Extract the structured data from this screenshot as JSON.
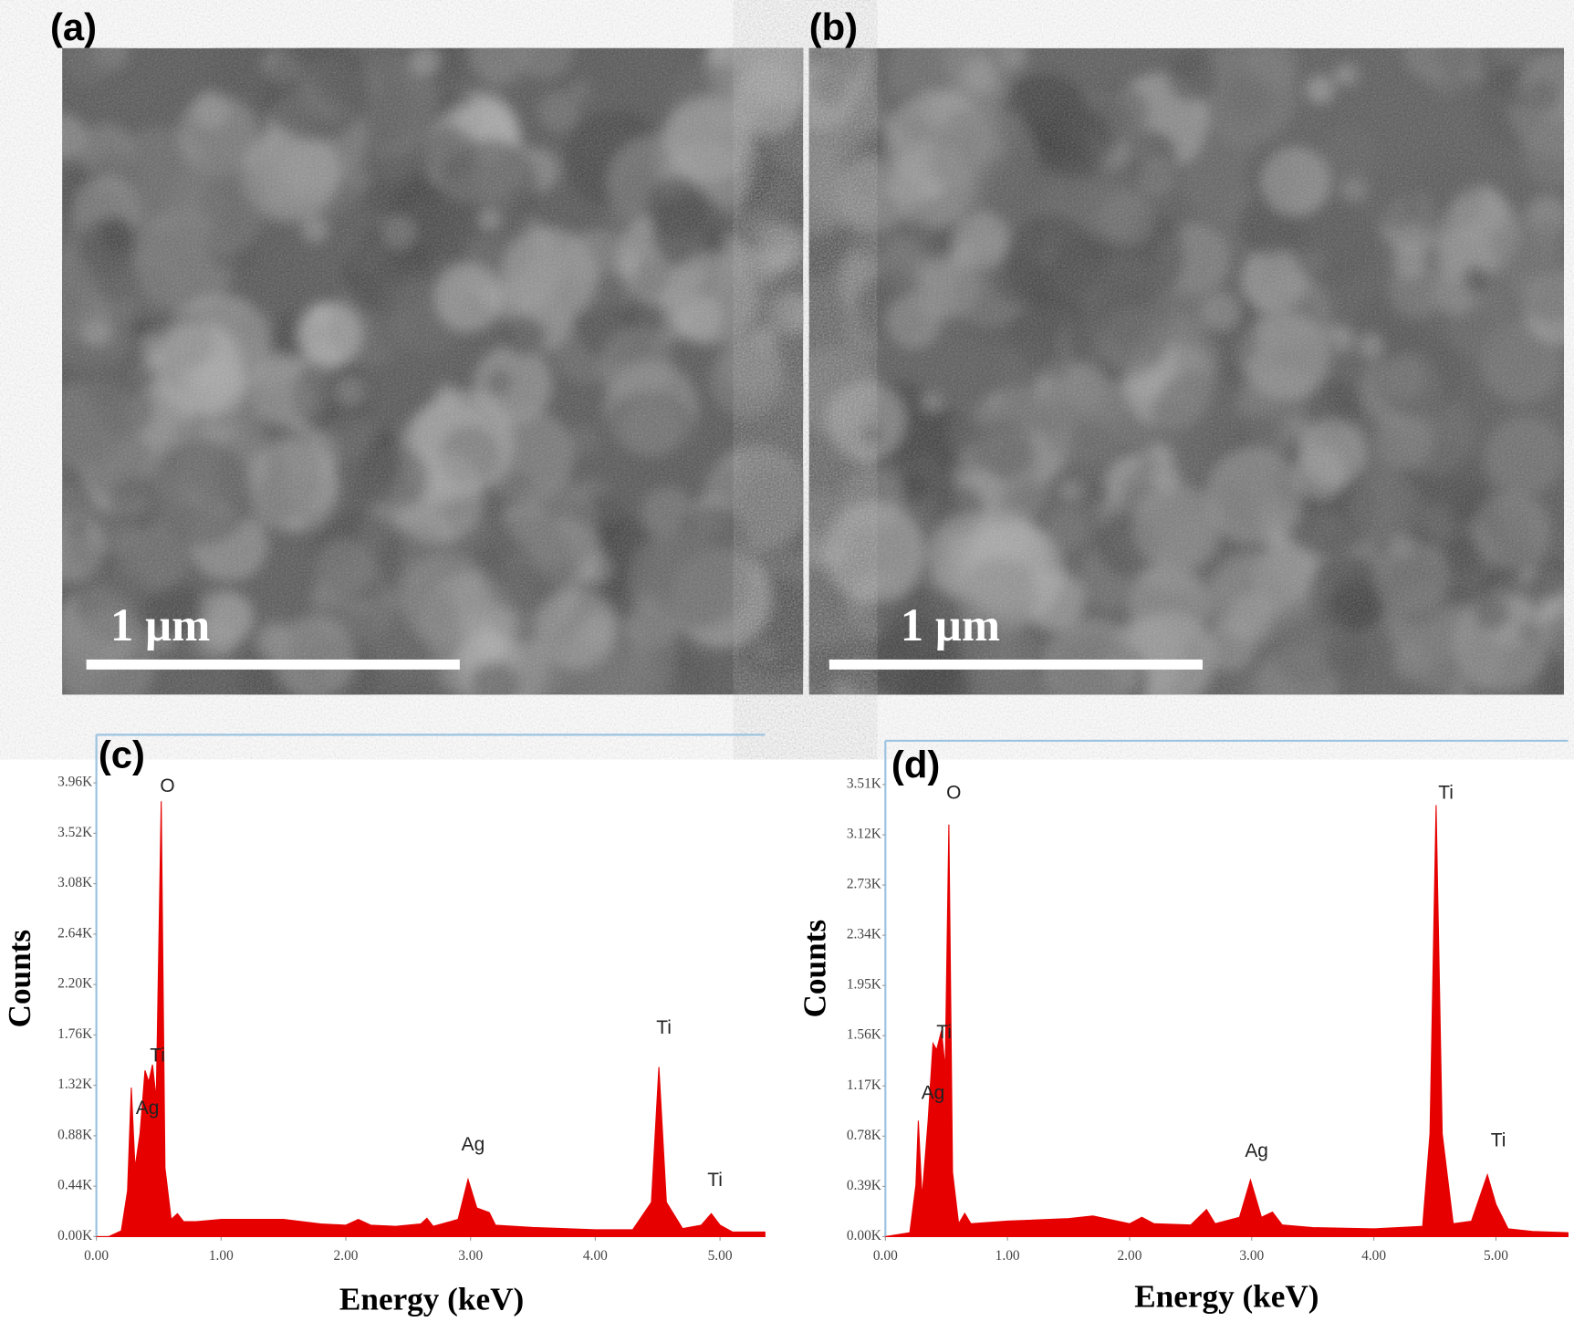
{
  "images": [
    {
      "label": "(a)",
      "scale_bar": "1 µm"
    },
    {
      "label": "(b)",
      "scale_bar": "1 µm"
    }
  ],
  "chart_data": [
    {
      "type": "area",
      "panel_label": "(c)",
      "x_label": "Energy (keV)",
      "y_label": "Counts",
      "color": "#e60000",
      "x": [
        0,
        0.1,
        0.2,
        0.25,
        0.28,
        0.31,
        0.35,
        0.39,
        0.42,
        0.45,
        0.48,
        0.52,
        0.55,
        0.6,
        0.65,
        0.7,
        0.8,
        1.0,
        1.5,
        1.8,
        2.0,
        2.1,
        2.2,
        2.4,
        2.6,
        2.65,
        2.7,
        2.9,
        2.98,
        3.05,
        3.15,
        3.2,
        3.5,
        4.0,
        4.3,
        4.45,
        4.51,
        4.57,
        4.7,
        4.85,
        4.93,
        5.0,
        5.1,
        5.36
      ],
      "values": [
        0,
        0,
        50,
        400,
        1300,
        600,
        900,
        1450,
        1350,
        1500,
        1200,
        3800,
        600,
        150,
        200,
        130,
        130,
        150,
        150,
        110,
        100,
        150,
        100,
        90,
        110,
        160,
        90,
        150,
        500,
        250,
        210,
        100,
        80,
        60,
        60,
        300,
        1480,
        300,
        70,
        100,
        200,
        100,
        40,
        40
      ],
      "xlim": [
        0,
        5.36
      ],
      "ylim": [
        0,
        4380
      ],
      "xticks": [
        {
          "value": 0,
          "label": "0.00"
        },
        {
          "value": 1,
          "label": "1.00"
        },
        {
          "value": 2,
          "label": "2.00"
        },
        {
          "value": 3,
          "label": "3.00"
        },
        {
          "value": 4,
          "label": "4.00"
        },
        {
          "value": 5,
          "label": "5.00"
        }
      ],
      "yticks": [
        {
          "value": 0,
          "label": "0.00K"
        },
        {
          "value": 440,
          "label": "0.44K"
        },
        {
          "value": 880,
          "label": "0.88K"
        },
        {
          "value": 1320,
          "label": "1.32K"
        },
        {
          "value": 1760,
          "label": "1.76K"
        },
        {
          "value": 2200,
          "label": "2.20K"
        },
        {
          "value": 2640,
          "label": "2.64K"
        },
        {
          "value": 3080,
          "label": "3.08K"
        },
        {
          "value": 3520,
          "label": "3.52K"
        },
        {
          "value": 3960,
          "label": "3.96K"
        }
      ],
      "annotations": [
        {
          "text": "O",
          "x": 0.57,
          "y": 3880
        },
        {
          "text": "Ti",
          "x": 0.49,
          "y": 1530
        },
        {
          "text": "Ag",
          "x": 0.41,
          "y": 1070
        },
        {
          "text": "Ag",
          "x": 3.02,
          "y": 750
        },
        {
          "text": "Ti",
          "x": 4.55,
          "y": 1770
        },
        {
          "text": "Ti",
          "x": 4.96,
          "y": 440
        }
      ]
    },
    {
      "type": "area",
      "panel_label": "(d)",
      "x_label": "Energy (keV)",
      "y_label": "Counts",
      "color": "#e60000",
      "x": [
        0,
        0.2,
        0.25,
        0.27,
        0.3,
        0.35,
        0.39,
        0.42,
        0.46,
        0.49,
        0.52,
        0.55,
        0.6,
        0.65,
        0.7,
        1.0,
        1.5,
        1.7,
        2.0,
        2.1,
        2.2,
        2.5,
        2.63,
        2.7,
        2.9,
        2.99,
        3.08,
        3.17,
        3.25,
        3.5,
        4.0,
        4.4,
        4.46,
        4.51,
        4.56,
        4.65,
        4.8,
        4.93,
        5.0,
        5.1,
        5.3,
        5.59
      ],
      "values": [
        0,
        30,
        400,
        900,
        300,
        900,
        1500,
        1450,
        1600,
        1300,
        3200,
        500,
        100,
        180,
        100,
        120,
        140,
        160,
        100,
        150,
        100,
        90,
        210,
        100,
        150,
        440,
        150,
        190,
        90,
        70,
        60,
        80,
        800,
        3350,
        800,
        100,
        120,
        480,
        250,
        60,
        40,
        30
      ],
      "xlim": [
        0,
        5.59
      ],
      "ylim": [
        0,
        3850
      ],
      "xticks": [
        {
          "value": 0,
          "label": "0.00"
        },
        {
          "value": 1,
          "label": "1.00"
        },
        {
          "value": 2,
          "label": "2.00"
        },
        {
          "value": 3,
          "label": "3.00"
        },
        {
          "value": 4,
          "label": "4.00"
        },
        {
          "value": 5,
          "label": "5.00"
        }
      ],
      "yticks": [
        {
          "value": 0,
          "label": "0.00K"
        },
        {
          "value": 390,
          "label": "0.39K"
        },
        {
          "value": 780,
          "label": "0.78K"
        },
        {
          "value": 1170,
          "label": "1.17K"
        },
        {
          "value": 1560,
          "label": "1.56K"
        },
        {
          "value": 1950,
          "label": "1.95K"
        },
        {
          "value": 2340,
          "label": "2.34K"
        },
        {
          "value": 2730,
          "label": "2.73K"
        },
        {
          "value": 3120,
          "label": "3.12K"
        },
        {
          "value": 3510,
          "label": "3.51K"
        }
      ],
      "annotations": [
        {
          "text": "O",
          "x": 0.56,
          "y": 3400
        },
        {
          "text": "Ti",
          "x": 0.48,
          "y": 1540
        },
        {
          "text": "Ag",
          "x": 0.39,
          "y": 1070
        },
        {
          "text": "Ag",
          "x": 3.04,
          "y": 620
        },
        {
          "text": "Ti",
          "x": 4.59,
          "y": 3400
        },
        {
          "text": "Ti",
          "x": 5.02,
          "y": 700
        }
      ]
    }
  ]
}
